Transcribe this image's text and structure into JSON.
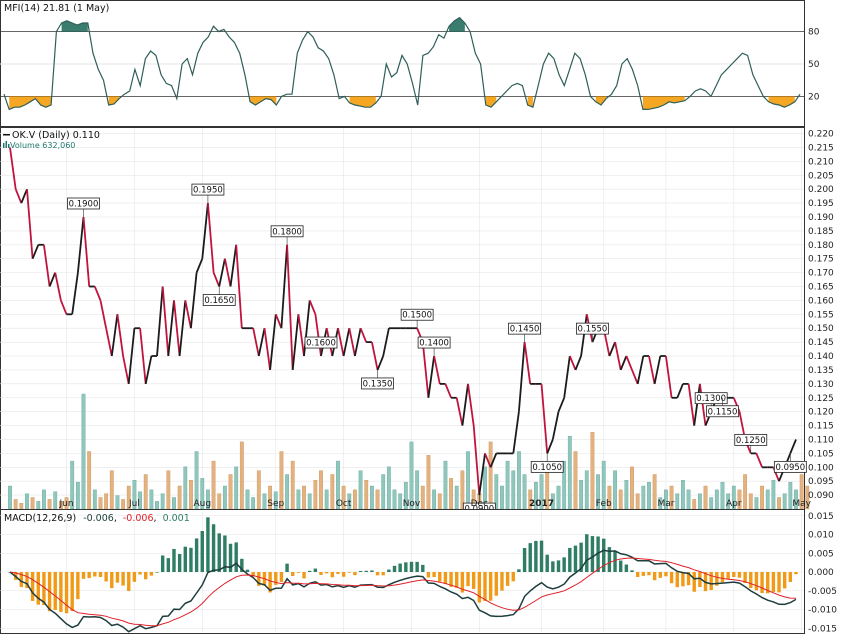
{
  "colors": {
    "up": "#1b1b1b",
    "down": "#c0143c",
    "mfi_line": "#2f5f5a",
    "mfi_high_fill": "#3a7d70",
    "mfi_low_fill": "#f5a623",
    "macd_line": "#1e3d3d",
    "signal_line": "#e0202a",
    "hist_pos": "#2e7d64",
    "hist_neg": "#f19a18",
    "vol_up": "#8fc7bd",
    "vol_down": "#e3b27e",
    "grid": "#e6e6e6"
  },
  "mfi": {
    "header": "MFI(14) 21.81 (1 May)",
    "levels": [
      80,
      50,
      20
    ],
    "values": [
      22,
      8,
      10,
      10,
      12,
      15,
      18,
      12,
      10,
      12,
      80,
      88,
      90,
      88,
      86,
      88,
      88,
      60,
      45,
      35,
      12,
      13,
      18,
      22,
      25,
      45,
      30,
      55,
      62,
      58,
      40,
      32,
      30,
      18,
      50,
      55,
      40,
      60,
      70,
      75,
      85,
      80,
      82,
      75,
      70,
      60,
      40,
      15,
      12,
      15,
      18,
      17,
      12,
      20,
      22,
      22,
      60,
      72,
      80,
      75,
      65,
      62,
      55,
      40,
      18,
      20,
      14,
      12,
      11,
      10,
      10,
      14,
      20,
      50,
      38,
      42,
      58,
      50,
      32,
      12,
      58,
      60,
      66,
      77,
      74,
      85,
      90,
      93,
      88,
      80,
      60,
      50,
      12,
      10,
      15,
      20,
      25,
      30,
      32,
      30,
      12,
      10,
      30,
      50,
      60,
      55,
      40,
      30,
      45,
      60,
      55,
      40,
      20,
      15,
      12,
      18,
      22,
      30,
      50,
      55,
      45,
      30,
      8,
      8,
      9,
      10,
      12,
      15,
      14,
      15,
      16,
      20,
      25,
      27,
      25,
      20,
      30,
      40,
      45,
      50,
      55,
      60,
      58,
      40,
      30,
      20,
      15,
      13,
      12,
      10,
      12,
      15,
      22
    ]
  },
  "price": {
    "header": "OK.V (Daily) 0.110",
    "volume_header": "Volume 632,060",
    "y_ticks": [
      "0.220",
      "0.215",
      "0.210",
      "0.205",
      "0.200",
      "0.195",
      "0.190",
      "0.185",
      "0.180",
      "0.175",
      "0.170",
      "0.165",
      "0.160",
      "0.155",
      "0.150",
      "0.145",
      "0.140",
      "0.135",
      "0.130",
      "0.125",
      "0.120",
      "0.115",
      "0.110",
      "0.105",
      "0.100",
      "0.095",
      "0.090"
    ],
    "ylim": [
      0.085,
      0.222
    ],
    "x_labels": [
      {
        "text": "Jun",
        "idx": 10
      },
      {
        "text": "Jul",
        "idx": 22
      },
      {
        "text": "Aug",
        "idx": 34
      },
      {
        "text": "Sep",
        "idx": 47
      },
      {
        "text": "Oct",
        "idx": 59
      },
      {
        "text": "Nov",
        "idx": 71
      },
      {
        "text": "Dec",
        "idx": 83
      },
      {
        "text": "2017",
        "idx": 94,
        "bold": true
      },
      {
        "text": "Feb",
        "idx": 105
      },
      {
        "text": "Mar",
        "idx": 116
      },
      {
        "text": "Apr",
        "idx": 128
      },
      {
        "text": "May",
        "idx": 140
      }
    ],
    "closes": [
      0.215,
      0.2,
      0.195,
      0.2,
      0.175,
      0.18,
      0.18,
      0.165,
      0.17,
      0.16,
      0.155,
      0.155,
      0.17,
      0.19,
      0.165,
      0.165,
      0.16,
      0.15,
      0.14,
      0.155,
      0.14,
      0.13,
      0.15,
      0.15,
      0.13,
      0.14,
      0.14,
      0.165,
      0.14,
      0.16,
      0.14,
      0.16,
      0.15,
      0.17,
      0.175,
      0.195,
      0.17,
      0.165,
      0.175,
      0.165,
      0.18,
      0.15,
      0.15,
      0.15,
      0.14,
      0.15,
      0.135,
      0.155,
      0.15,
      0.18,
      0.135,
      0.155,
      0.14,
      0.16,
      0.155,
      0.14,
      0.15,
      0.14,
      0.15,
      0.14,
      0.15,
      0.14,
      0.15,
      0.145,
      0.145,
      0.135,
      0.14,
      0.15,
      0.15,
      0.15,
      0.15,
      0.15,
      0.15,
      0.145,
      0.125,
      0.14,
      0.13,
      0.13,
      0.125,
      0.125,
      0.115,
      0.13,
      0.115,
      0.09,
      0.105,
      0.1,
      0.105,
      0.105,
      0.105,
      0.105,
      0.12,
      0.145,
      0.13,
      0.13,
      0.13,
      0.105,
      0.11,
      0.12,
      0.125,
      0.14,
      0.135,
      0.14,
      0.155,
      0.145,
      0.15,
      0.15,
      0.14,
      0.145,
      0.135,
      0.14,
      0.135,
      0.13,
      0.14,
      0.14,
      0.13,
      0.14,
      0.14,
      0.125,
      0.125,
      0.13,
      0.13,
      0.115,
      0.13,
      0.115,
      0.12,
      0.125,
      0.125,
      0.125,
      0.125,
      0.12,
      0.11,
      0.105,
      0.105,
      0.1,
      0.1,
      0.1,
      0.095,
      0.1,
      0.105,
      0.11
    ],
    "volumes": [
      12,
      5,
      3,
      8,
      6,
      4,
      10,
      5,
      9,
      4,
      6,
      25,
      14,
      60,
      30,
      10,
      6,
      8,
      20,
      7,
      5,
      12,
      15,
      9,
      18,
      10,
      4,
      8,
      20,
      6,
      12,
      22,
      15,
      30,
      16,
      10,
      25,
      8,
      12,
      18,
      22,
      35,
      10,
      6,
      20,
      8,
      12,
      9,
      30,
      18,
      25,
      10,
      12,
      8,
      15,
      20,
      10,
      18,
      25,
      12,
      8,
      10,
      20,
      15,
      12,
      10,
      18,
      22,
      10,
      8,
      14,
      35,
      20,
      12,
      28,
      10,
      8,
      25,
      16,
      12,
      20,
      30,
      10,
      8,
      22,
      35,
      18,
      12,
      25,
      20,
      30,
      18,
      10,
      14,
      18,
      22,
      8,
      12,
      25,
      38,
      30,
      15,
      20,
      40,
      18,
      25,
      12,
      20,
      10,
      15,
      22,
      8,
      12,
      14,
      18,
      6,
      10,
      12,
      8,
      15,
      10,
      5,
      8,
      12,
      6,
      10,
      14,
      8,
      12,
      10,
      18,
      8,
      6,
      12,
      10,
      15,
      6,
      8,
      14,
      10,
      18,
      12
    ]
  },
  "annotations": [
    {
      "idx": 13,
      "text": "0.1900",
      "above": true
    },
    {
      "idx": 35,
      "text": "0.1950",
      "above": true
    },
    {
      "idx": 37,
      "text": "0.1650",
      "above": false
    },
    {
      "idx": 49,
      "text": "0.1800",
      "above": true
    },
    {
      "idx": 55,
      "text": "0.1600",
      "above": true
    },
    {
      "idx": 65,
      "text": "0.1350",
      "above": false
    },
    {
      "idx": 72,
      "text": "0.1500",
      "above": true
    },
    {
      "idx": 75,
      "text": "0.1400",
      "above": true
    },
    {
      "idx": 83,
      "text": "0.0900",
      "above": false
    },
    {
      "idx": 91,
      "text": "0.1450",
      "above": true
    },
    {
      "idx": 95,
      "text": "0.1050",
      "above": false
    },
    {
      "idx": 103,
      "text": "0.1550",
      "above": true
    },
    {
      "idx": 124,
      "text": "0.1300",
      "above": true
    },
    {
      "idx": 126,
      "text": "0.1150",
      "above": false
    },
    {
      "idx": 131,
      "text": "0.1250",
      "above": true
    },
    {
      "idx": 138,
      "text": "0.0950",
      "above": false
    }
  ],
  "macd": {
    "header_label": "MACD(12,26,9)",
    "macd_value": "-0.006",
    "signal_value": "-0.006",
    "hist_value": "0.001",
    "y_ticks": [
      "0.015",
      "0.010",
      "0.005",
      "0.000",
      "-0.005",
      "-0.010",
      "-0.015"
    ],
    "ylim": [
      -0.016,
      0.016
    ]
  }
}
